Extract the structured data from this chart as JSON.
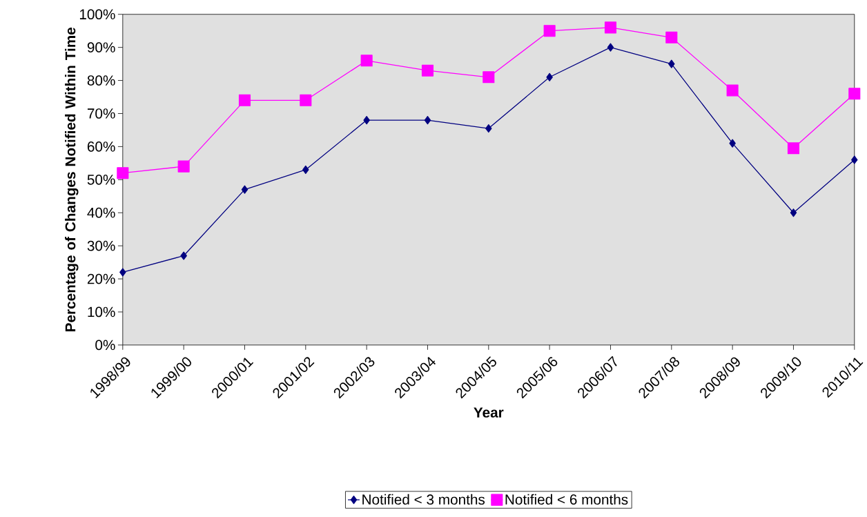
{
  "chart_data": {
    "type": "line",
    "xlabel": "Year",
    "ylabel": "Percentage of Changes Notified Within Time",
    "categories": [
      "1998/99",
      "1999/00",
      "2000/01",
      "2001/02",
      "2002/03",
      "2003/04",
      "2004/05",
      "2005/06",
      "2006/07",
      "2007/08",
      "2008/09",
      "2009/10",
      "2010/11"
    ],
    "series": [
      {
        "name": "Notified < 3 months",
        "color": "#000080",
        "marker": "diamond",
        "values": [
          22,
          27,
          47,
          53,
          68,
          68,
          65.5,
          81,
          90,
          85,
          61,
          40,
          56
        ]
      },
      {
        "name": "Notified < 6 months",
        "color": "#ff00ff",
        "marker": "square",
        "values": [
          52,
          54,
          74,
          74,
          86,
          83,
          81,
          95,
          96,
          93,
          77,
          59.5,
          76
        ]
      }
    ],
    "ylim": [
      0,
      100
    ],
    "yticks": [
      {
        "value": 0,
        "label": "0%"
      },
      {
        "value": 10,
        "label": "10%"
      },
      {
        "value": 20,
        "label": "20%"
      },
      {
        "value": 30,
        "label": "30%"
      },
      {
        "value": 40,
        "label": "40%"
      },
      {
        "value": 50,
        "label": "50%"
      },
      {
        "value": 60,
        "label": "60%"
      },
      {
        "value": 70,
        "label": "70%"
      },
      {
        "value": 80,
        "label": "80%"
      },
      {
        "value": 90,
        "label": "90%"
      },
      {
        "value": 100,
        "label": "100%"
      }
    ],
    "legend": "bottom",
    "line_style": "solid"
  }
}
